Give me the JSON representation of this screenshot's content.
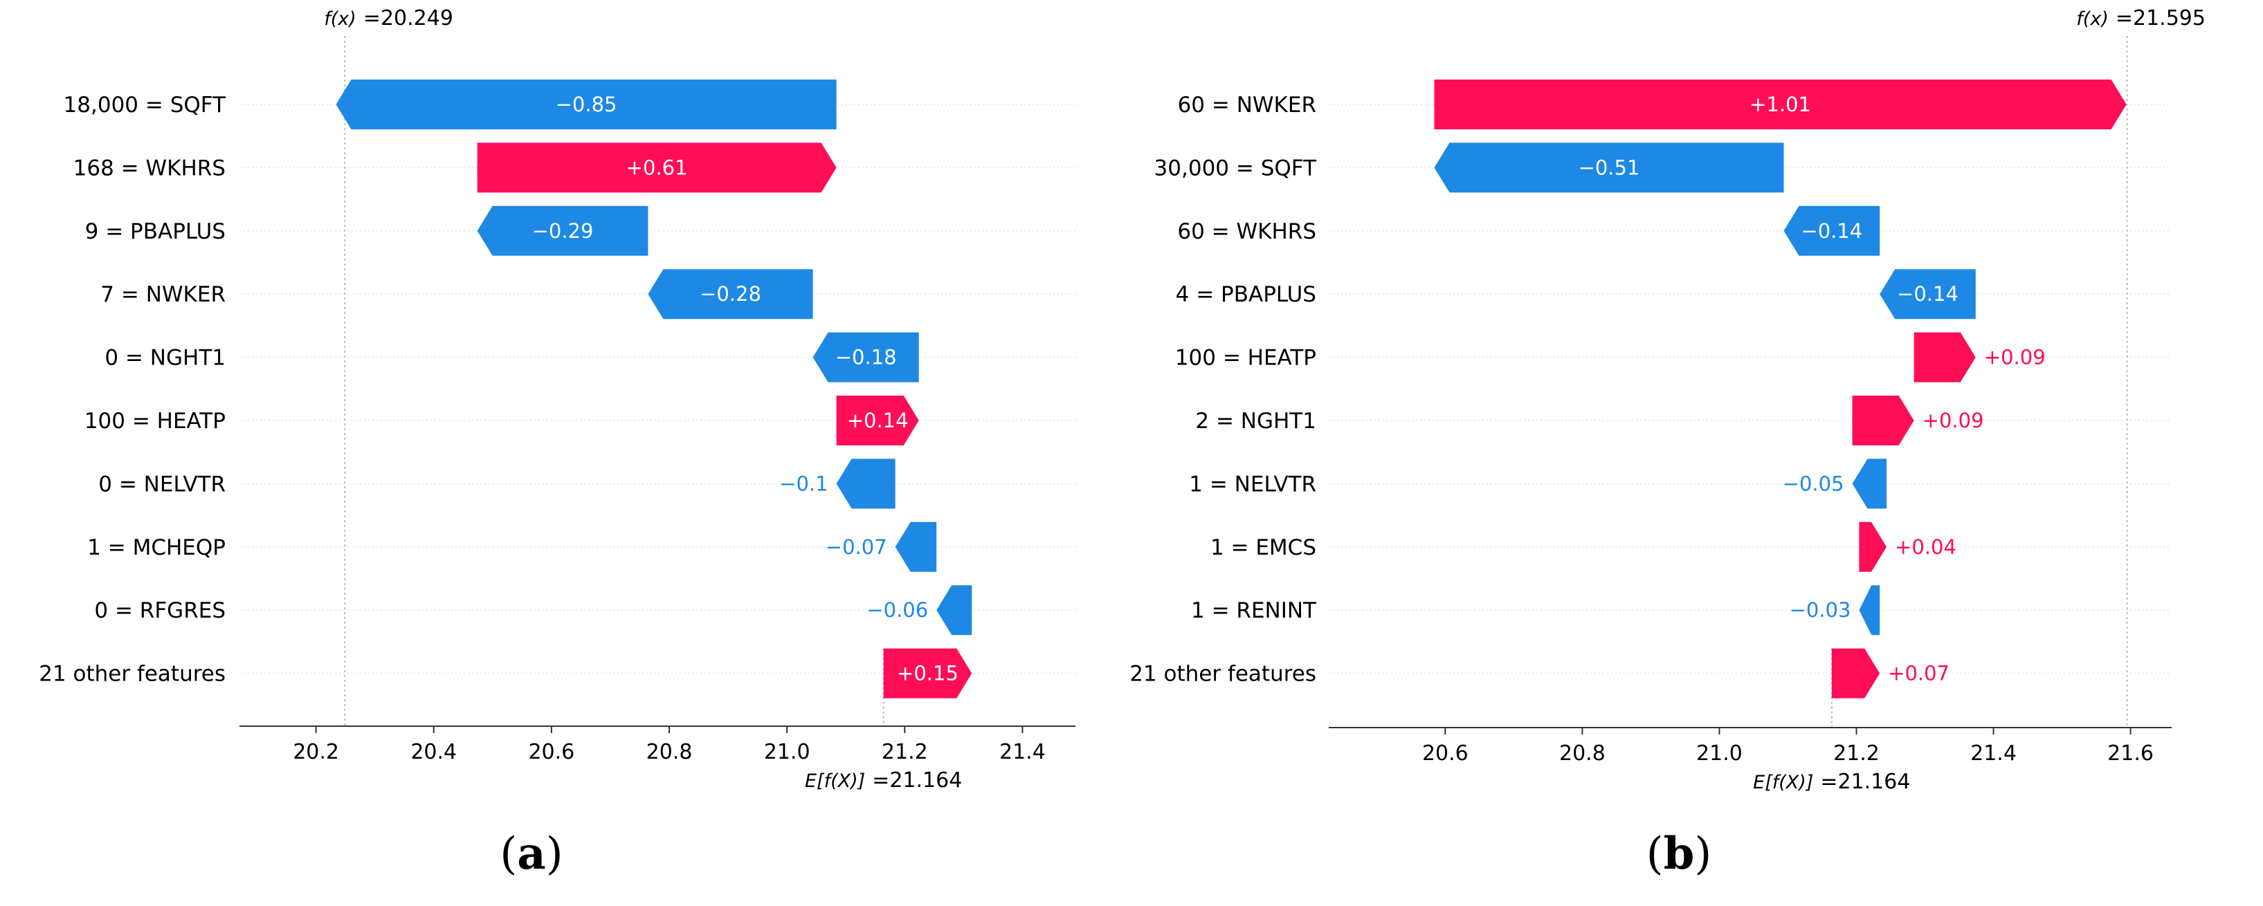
{
  "colors": {
    "positive": "#ff0d57",
    "negative": "#1e88e5",
    "axis": "#333333",
    "grid": "#cccccc",
    "text": "#000000"
  },
  "chart_data": [
    {
      "type": "waterfall",
      "panel": "a",
      "caption_letter": "a",
      "fx_label": "f(x)",
      "fx_value": "=20.249",
      "ex_label": "E[f(X)]",
      "ex_value": "=21.164",
      "base_value": 21.164,
      "output_value": 20.249,
      "xlim": [
        20.07,
        21.49
      ],
      "xticks": [
        20.2,
        20.4,
        20.6,
        20.8,
        21.0,
        21.2,
        21.4
      ],
      "xtick_labels": [
        "20.2",
        "20.4",
        "20.6",
        "20.8",
        "21.0",
        "21.2",
        "21.4"
      ],
      "features": [
        {
          "label": "18,000 = SQFT",
          "value": -0.85,
          "value_label": "−0.85"
        },
        {
          "label": "168 = WKHRS",
          "value": 0.61,
          "value_label": "+0.61"
        },
        {
          "label": "9 = PBAPLUS",
          "value": -0.29,
          "value_label": "−0.29"
        },
        {
          "label": "7 = NWKER",
          "value": -0.28,
          "value_label": "−0.28"
        },
        {
          "label": "0 = NGHT1",
          "value": -0.18,
          "value_label": "−0.18"
        },
        {
          "label": "100 = HEATP",
          "value": 0.14,
          "value_label": "+0.14"
        },
        {
          "label": "0 = NELVTR",
          "value": -0.1,
          "value_label": "−0.1"
        },
        {
          "label": "1 = MCHEQP",
          "value": -0.07,
          "value_label": "−0.07"
        },
        {
          "label": "0 = RFGRES",
          "value": -0.06,
          "value_label": "−0.06"
        },
        {
          "label": "21 other features",
          "value": 0.15,
          "value_label": "+0.15"
        }
      ]
    },
    {
      "type": "waterfall",
      "panel": "b",
      "caption_letter": "b",
      "fx_label": "f(x)",
      "fx_value": "=21.595",
      "ex_label": "E[f(X)]",
      "ex_value": "=21.164",
      "base_value": 21.164,
      "output_value": 21.595,
      "xlim": [
        20.43,
        21.66
      ],
      "xticks": [
        20.6,
        20.8,
        21.0,
        21.2,
        21.4,
        21.6
      ],
      "xtick_labels": [
        "20.6",
        "20.8",
        "21.0",
        "21.2",
        "21.4",
        "21.6"
      ],
      "features": [
        {
          "label": "60 = NWKER",
          "value": 1.01,
          "value_label": "+1.01"
        },
        {
          "label": "30,000 = SQFT",
          "value": -0.51,
          "value_label": "−0.51"
        },
        {
          "label": "60 = WKHRS",
          "value": -0.14,
          "value_label": "−0.14"
        },
        {
          "label": "4 = PBAPLUS",
          "value": -0.14,
          "value_label": "−0.14"
        },
        {
          "label": "100 = HEATP",
          "value": 0.09,
          "value_label": "+0.09"
        },
        {
          "label": "2 = NGHT1",
          "value": 0.09,
          "value_label": "+0.09"
        },
        {
          "label": "1 = NELVTR",
          "value": -0.05,
          "value_label": "−0.05"
        },
        {
          "label": "1 = EMCS",
          "value": 0.04,
          "value_label": "+0.04"
        },
        {
          "label": "1 = RENINT",
          "value": -0.03,
          "value_label": "−0.03"
        },
        {
          "label": "21 other features",
          "value": 0.07,
          "value_label": "+0.07"
        }
      ]
    }
  ]
}
